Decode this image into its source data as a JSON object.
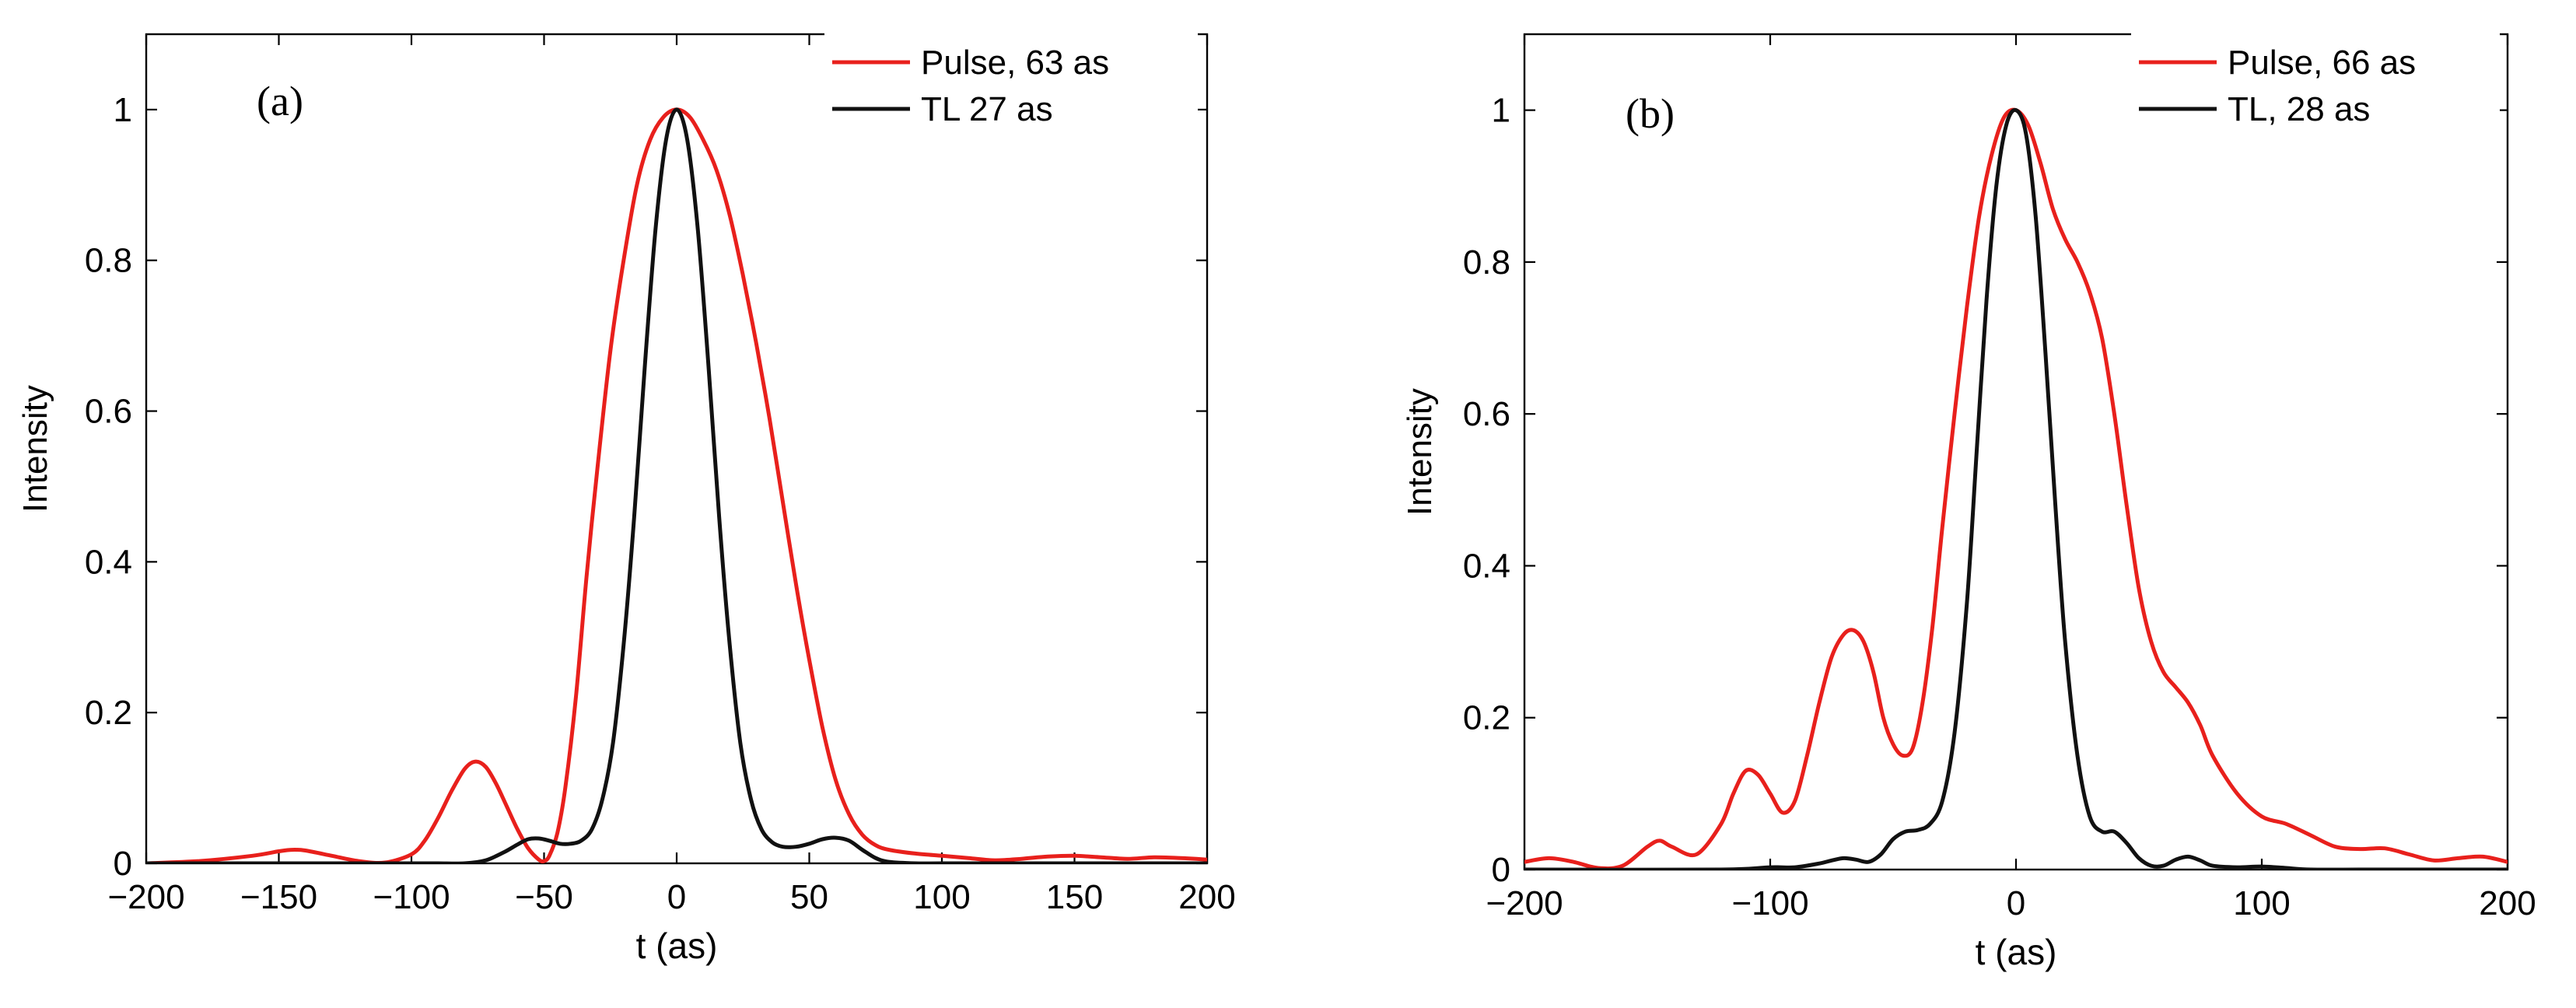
{
  "chart_data": [
    {
      "type": "line",
      "panel_label": "(a)",
      "xlabel": "t (as)",
      "ylabel": "Intensity",
      "xlim": [
        -200,
        200
      ],
      "ylim": [
        0,
        1.1
      ],
      "xticks": [
        -200,
        -150,
        -100,
        -50,
        0,
        50,
        100,
        150,
        200
      ],
      "yticks": [
        0,
        0.2,
        0.4,
        0.6,
        0.8,
        1
      ],
      "ytick_labels": [
        "0",
        "0.2",
        "0.4",
        "0.6",
        "0.8",
        "1"
      ],
      "xtick_labels": [
        "−200",
        "−150",
        "−100",
        "−50",
        "0",
        "50",
        "100",
        "150",
        "200"
      ],
      "legend_position": "top-right",
      "series": [
        {
          "name": "Pulse, 63 as",
          "color": "#e8201c",
          "x": [
            -200,
            -180,
            -160,
            -150,
            -145,
            -140,
            -130,
            -120,
            -110,
            -100,
            -95,
            -90,
            -85,
            -80,
            -76,
            -72,
            -68,
            -64,
            -60,
            -56,
            -52,
            -50,
            -48,
            -45,
            -42,
            -38,
            -34,
            -30,
            -25,
            -20,
            -15,
            -10,
            -5,
            0,
            5,
            10,
            15,
            20,
            25,
            30,
            35,
            40,
            45,
            50,
            55,
            60,
            65,
            70,
            75,
            80,
            90,
            100,
            110,
            120,
            130,
            140,
            150,
            160,
            170,
            180,
            190,
            200
          ],
          "y": [
            0.0,
            0.003,
            0.01,
            0.016,
            0.018,
            0.017,
            0.01,
            0.003,
            0.001,
            0.012,
            0.03,
            0.06,
            0.095,
            0.125,
            0.135,
            0.128,
            0.105,
            0.075,
            0.045,
            0.02,
            0.005,
            0.003,
            0.01,
            0.04,
            0.1,
            0.22,
            0.38,
            0.52,
            0.68,
            0.8,
            0.9,
            0.96,
            0.99,
            1.0,
            0.99,
            0.96,
            0.92,
            0.86,
            0.78,
            0.69,
            0.59,
            0.48,
            0.37,
            0.27,
            0.18,
            0.11,
            0.065,
            0.038,
            0.024,
            0.018,
            0.013,
            0.01,
            0.007,
            0.004,
            0.006,
            0.009,
            0.01,
            0.008,
            0.006,
            0.008,
            0.007,
            0.005
          ]
        },
        {
          "name": "TL 27 as",
          "color": "#111111",
          "x": [
            -200,
            -120,
            -100,
            -90,
            -80,
            -72,
            -65,
            -60,
            -56,
            -52,
            -48,
            -44,
            -40,
            -36,
            -32,
            -28,
            -24,
            -20,
            -16,
            -12,
            -8,
            -4,
            0,
            4,
            8,
            12,
            16,
            20,
            24,
            28,
            32,
            36,
            40,
            45,
            50,
            55,
            60,
            65,
            70,
            75,
            80,
            90,
            100,
            120,
            140,
            160,
            180,
            200
          ],
          "y": [
            0,
            0,
            0.0,
            0.0,
            0.0,
            0.004,
            0.015,
            0.025,
            0.032,
            0.033,
            0.03,
            0.026,
            0.026,
            0.03,
            0.045,
            0.085,
            0.16,
            0.29,
            0.46,
            0.66,
            0.84,
            0.96,
            1.0,
            0.96,
            0.84,
            0.66,
            0.46,
            0.29,
            0.16,
            0.085,
            0.045,
            0.028,
            0.022,
            0.022,
            0.026,
            0.032,
            0.034,
            0.03,
            0.018,
            0.007,
            0.002,
            0.0,
            0.0,
            0,
            0,
            0,
            0,
            0
          ]
        }
      ]
    },
    {
      "type": "line",
      "panel_label": "(b)",
      "xlabel": "t (as)",
      "ylabel": "Intensity",
      "xlim": [
        -200,
        200
      ],
      "ylim": [
        0,
        1.1
      ],
      "xticks": [
        -200,
        -100,
        0,
        100,
        200
      ],
      "yticks": [
        0,
        0.2,
        0.4,
        0.6,
        0.8,
        1
      ],
      "ytick_labels": [
        "0",
        "0.2",
        "0.4",
        "0.6",
        "0.8",
        "1"
      ],
      "xtick_labels": [
        "−200",
        "−100",
        "0",
        "100",
        "200"
      ],
      "legend_position": "top-right",
      "series": [
        {
          "name": "Pulse, 66 as",
          "color": "#e8201c",
          "x": [
            -200,
            -190,
            -180,
            -170,
            -160,
            -150,
            -145,
            -140,
            -130,
            -120,
            -115,
            -110,
            -105,
            -100,
            -95,
            -90,
            -85,
            -80,
            -75,
            -70,
            -66,
            -62,
            -58,
            -54,
            -50,
            -46,
            -42,
            -38,
            -34,
            -30,
            -25,
            -20,
            -15,
            -10,
            -5,
            0,
            5,
            10,
            15,
            20,
            25,
            30,
            35,
            40,
            45,
            50,
            55,
            60,
            65,
            70,
            75,
            80,
            90,
            100,
            110,
            120,
            130,
            140,
            150,
            160,
            170,
            180,
            190,
            200
          ],
          "y": [
            0.01,
            0.015,
            0.01,
            0.002,
            0.005,
            0.03,
            0.038,
            0.03,
            0.02,
            0.06,
            0.1,
            0.13,
            0.125,
            0.1,
            0.075,
            0.09,
            0.15,
            0.22,
            0.28,
            0.31,
            0.315,
            0.3,
            0.26,
            0.2,
            0.165,
            0.15,
            0.16,
            0.22,
            0.32,
            0.45,
            0.6,
            0.74,
            0.86,
            0.94,
            0.99,
            1.0,
            0.98,
            0.93,
            0.87,
            0.83,
            0.8,
            0.76,
            0.7,
            0.6,
            0.48,
            0.37,
            0.3,
            0.26,
            0.24,
            0.22,
            0.19,
            0.15,
            0.1,
            0.07,
            0.06,
            0.045,
            0.03,
            0.027,
            0.028,
            0.02,
            0.012,
            0.015,
            0.017,
            0.01
          ]
        },
        {
          "name": "TL, 28 as",
          "color": "#111111",
          "x": [
            -200,
            -120,
            -100,
            -90,
            -80,
            -75,
            -70,
            -65,
            -60,
            -55,
            -50,
            -45,
            -40,
            -35,
            -30,
            -25,
            -20,
            -16,
            -12,
            -8,
            -4,
            0,
            4,
            8,
            12,
            16,
            20,
            25,
            30,
            35,
            40,
            45,
            50,
            55,
            60,
            65,
            70,
            75,
            80,
            90,
            100,
            110,
            120,
            140,
            160,
            180,
            200
          ],
          "y": [
            0,
            0,
            0.003,
            0.003,
            0.008,
            0.012,
            0.015,
            0.013,
            0.01,
            0.02,
            0.04,
            0.05,
            0.052,
            0.06,
            0.09,
            0.18,
            0.35,
            0.55,
            0.75,
            0.9,
            0.98,
            1.0,
            0.97,
            0.86,
            0.68,
            0.48,
            0.3,
            0.15,
            0.07,
            0.05,
            0.05,
            0.035,
            0.015,
            0.005,
            0.005,
            0.013,
            0.017,
            0.012,
            0.005,
            0.003,
            0.004,
            0.002,
            0.0,
            0,
            0,
            0,
            0
          ]
        }
      ]
    }
  ]
}
